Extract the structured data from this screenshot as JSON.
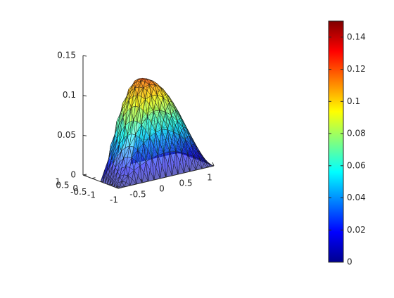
{
  "chart_data": {
    "type": "surface",
    "title": "",
    "xlabel": "",
    "ylabel": "",
    "zlabel": "",
    "xlim": [
      -1,
      1
    ],
    "ylim": [
      -1,
      1
    ],
    "zlim": [
      0,
      0.15
    ],
    "x_ticks": [
      -1,
      -0.5,
      0,
      0.5,
      1
    ],
    "x_tick_labels": [
      "-1",
      "-0.5",
      "0",
      "0.5",
      "1"
    ],
    "y_ticks": [
      -1,
      -0.5,
      0,
      0.5,
      1
    ],
    "y_tick_labels": [
      "-1",
      "-0.5",
      "0",
      "0.5",
      "1"
    ],
    "z_ticks": [
      0,
      0.05,
      0.1,
      0.15
    ],
    "z_tick_labels": [
      "0",
      "0.05",
      "0.1",
      "0.15"
    ],
    "surface": "triangulated mesh over an L-shaped region (x in [-1,1], y in [-1,1], with the square x in [-1,0], y in [0,1] removed), zero on the boundary, peak about 0.145 near (0.25, 0.3)",
    "peak_value": 0.145,
    "face_alpha": "semi-transparent",
    "colormap": "jet",
    "colorbar": {
      "location": "right",
      "ticks": [
        0,
        0.02,
        0.04,
        0.06,
        0.08,
        0.1,
        0.12,
        0.14
      ],
      "tick_labels": [
        "0",
        "0.02",
        "0.04",
        "0.06",
        "0.08",
        "0.1",
        "0.12",
        "0.14"
      ],
      "range": [
        0,
        0.15
      ]
    },
    "grid": false
  }
}
